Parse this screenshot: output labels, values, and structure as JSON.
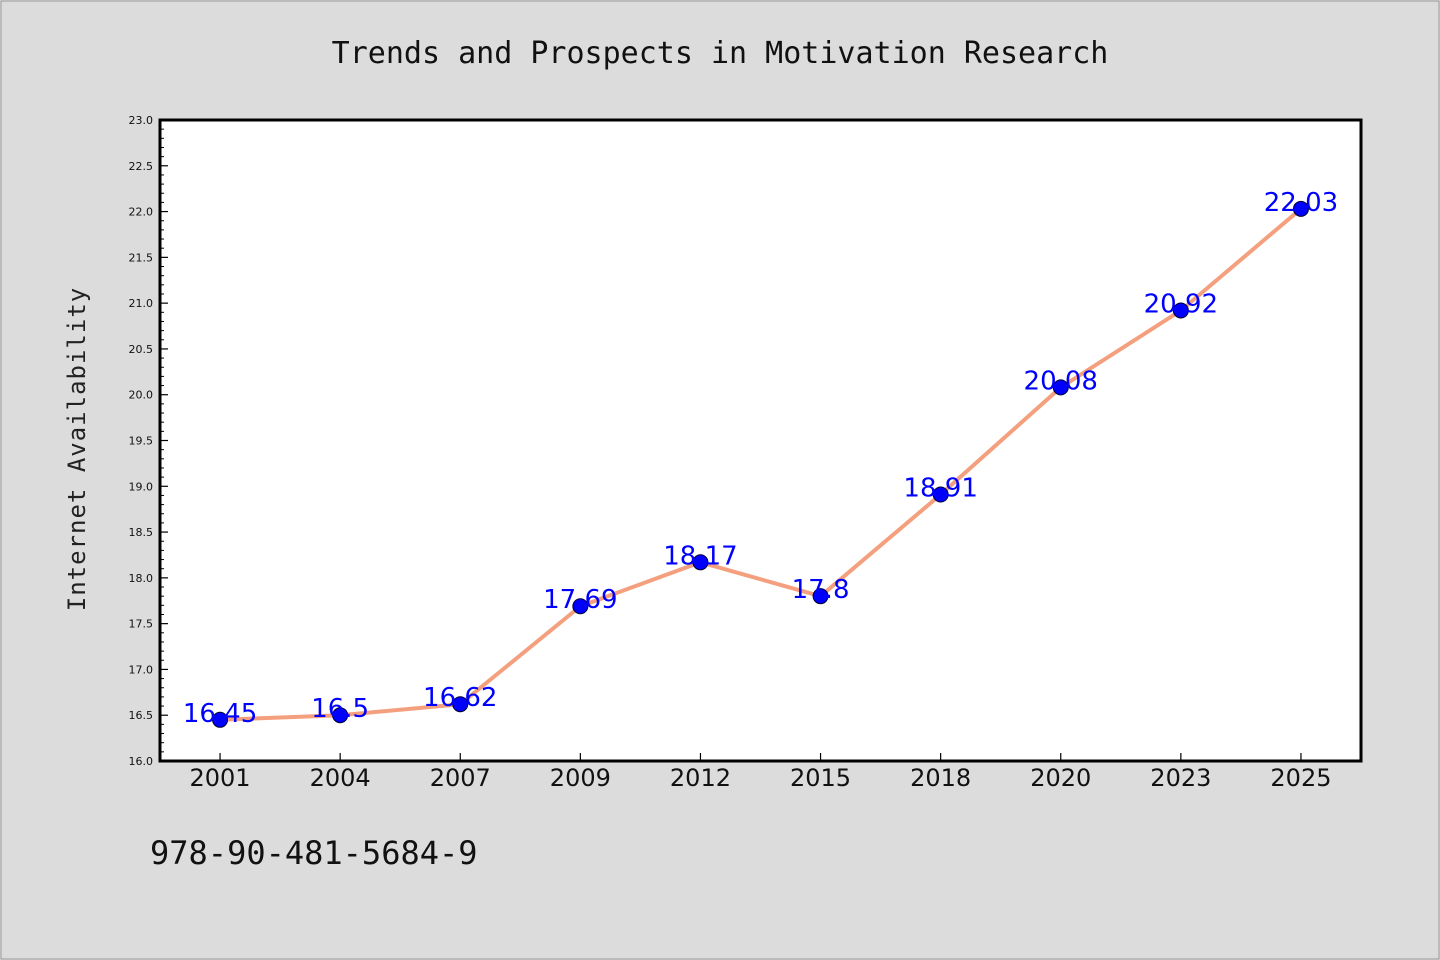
{
  "chart_data": {
    "type": "line",
    "title": "Trends and Prospects in Motivation Research",
    "xlabel": "",
    "ylabel": "Internet Availability",
    "categories": [
      "2001",
      "2004",
      "2007",
      "2009",
      "2012",
      "2015",
      "2018",
      "2020",
      "2023",
      "2025"
    ],
    "values": [
      16.45,
      16.5,
      16.62,
      17.69,
      18.17,
      17.8,
      18.91,
      20.08,
      20.92,
      22.03
    ],
    "data_labels": [
      "16.45",
      "16.5",
      "16.62",
      "17.69",
      "18.17",
      "17.8",
      "18.91",
      "20.08",
      "20.92",
      "22.03"
    ],
    "ylim": [
      16.0,
      23.0
    ],
    "yticks": [
      "16.0",
      "16.5",
      "17.0",
      "17.5",
      "18.0",
      "18.5",
      "19.0",
      "19.5",
      "20.0",
      "20.5",
      "21.0",
      "21.5",
      "22.0",
      "22.5",
      "23.0"
    ],
    "grid": false,
    "legend": false,
    "colors": {
      "line": "#f4a07e",
      "marker": "#0000ff",
      "label": "#0000ff",
      "plot_background": "#ffffff",
      "figure_background": "#dcdcdc"
    }
  },
  "footer": {
    "isbn": "978-90-481-5684-9"
  }
}
